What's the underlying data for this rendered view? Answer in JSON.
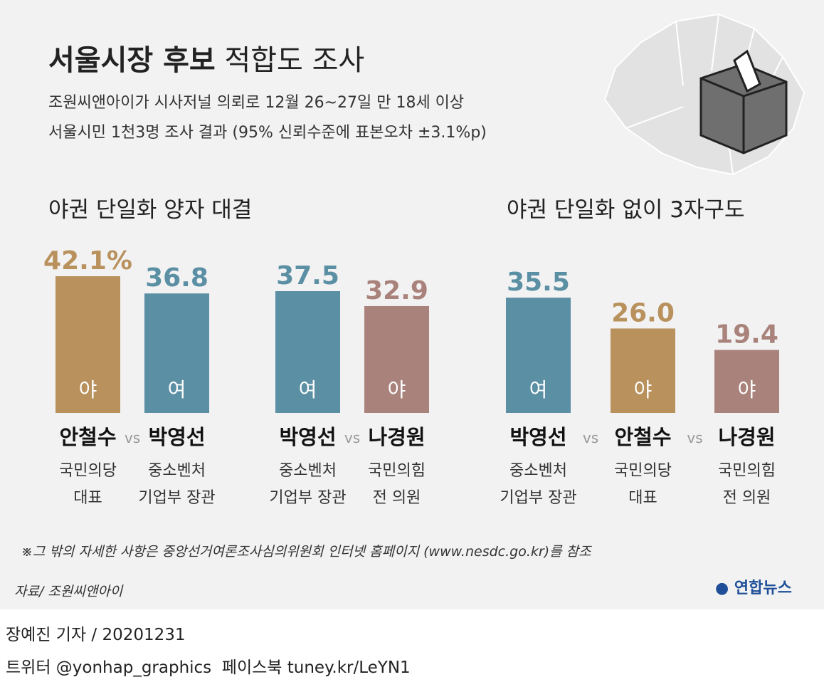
{
  "header": {
    "title_bold": "서울시장 후보",
    "title_rest": "적합도 조사",
    "subtitle": [
      "조원씨앤아이가 시사저널 의뢰로 12월 26~27일 만 18세 이상",
      "서울시민 1천3명 조사 결과 (95% 신뢰수준에 표본오차 ±3.1%p)"
    ]
  },
  "chart_data": [
    {
      "type": "bar",
      "title": "야권 단일화 양자 대결",
      "categories": [
        "안철수",
        "박영선"
      ],
      "sides": [
        "야",
        "여"
      ],
      "descriptions": [
        [
          "국민의당",
          "대표"
        ],
        [
          "중소벤처",
          "기업부 장관"
        ]
      ],
      "separator": "vs",
      "values": [
        42.1,
        36.8
      ],
      "value_labels": [
        "42.1%",
        "36.8"
      ],
      "colors": [
        "#b8915c",
        "#5b8fa4"
      ]
    },
    {
      "type": "bar",
      "categories": [
        "박영선",
        "나경원"
      ],
      "sides": [
        "여",
        "야"
      ],
      "descriptions": [
        [
          "중소벤처",
          "기업부 장관"
        ],
        [
          "국민의힘",
          "전 의원"
        ]
      ],
      "separator": "vs",
      "values": [
        37.5,
        32.9
      ],
      "value_labels": [
        "37.5",
        "32.9"
      ],
      "colors": [
        "#5b8fa4",
        "#a9837b"
      ]
    },
    {
      "type": "bar",
      "title": "야권 단일화 없이 3자구도",
      "categories": [
        "박영선",
        "안철수",
        "나경원"
      ],
      "sides": [
        "여",
        "야",
        "야"
      ],
      "descriptions": [
        [
          "중소벤처",
          "기업부 장관"
        ],
        [
          "국민의당",
          "대표"
        ],
        [
          "국민의힘",
          "전 의원"
        ]
      ],
      "separator": "vs",
      "values": [
        35.5,
        26.0,
        19.4
      ],
      "value_labels": [
        "35.5",
        "26.0",
        "19.4"
      ],
      "colors": [
        "#5b8fa4",
        "#b8915c",
        "#a9837b"
      ]
    }
  ],
  "note": "※그 밖의 자세한 사항은 중앙선거여론조사심의위원회 인터넷 홈페이지 (www.nesdc.go.kr)를 참조",
  "source": "자료/ 조원씨앤아이",
  "logo": "연합뉴스",
  "footer": {
    "byline": "장예진 기자 / 20201231",
    "social": "트위터 @yonhap_graphics  페이스북 tuney.kr/LeYN1"
  }
}
